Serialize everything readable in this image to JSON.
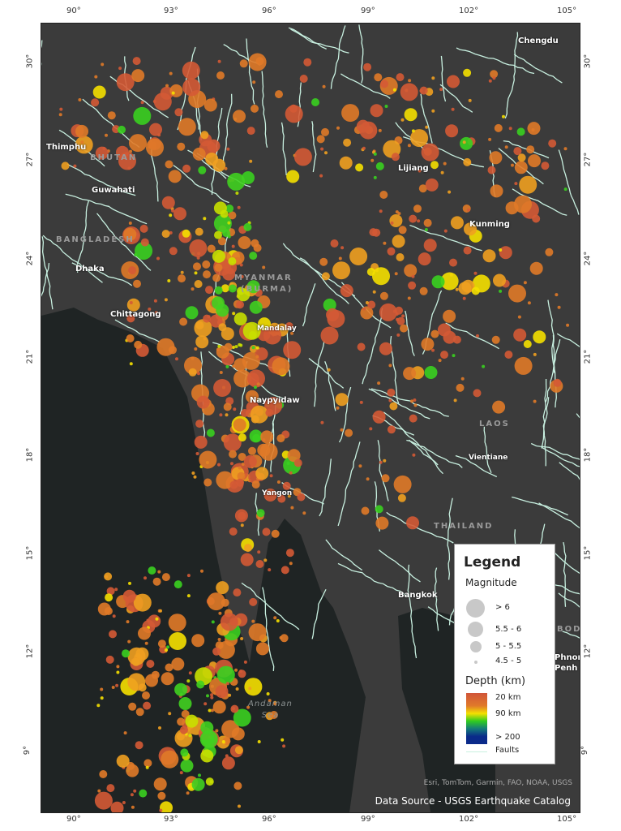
{
  "axes": {
    "lon_ticks": [
      "90°",
      "93°",
      "96°",
      "99°",
      "102°",
      "105°"
    ],
    "lat_ticks": [
      "30°",
      "27°",
      "24°",
      "21°",
      "18°",
      "15°",
      "12°",
      "9°"
    ]
  },
  "places": {
    "chengdu": "Chengdu",
    "thimphu": "Thimphu",
    "guwahati": "Guwahati",
    "dhaka": "Dhaka",
    "chittagong": "Chittagong",
    "mandalay": "Mandalay",
    "lijiang": "Lijiang",
    "kunming": "Kunming",
    "naypyidaw": "Naypyidaw",
    "vientiane": "Vientiane",
    "yangon": "Yangon",
    "bangkok": "Bangkok",
    "phnom_penh": "Phnom\nPenh"
  },
  "countries": {
    "bhutan": "BHUTAN",
    "bangladesh": "BANGLADESH",
    "myanmar": "MYANMAR",
    "burma": "(BURMA)",
    "laos": "LAOS",
    "thailand": "THAILAND",
    "cambodia": "BOD"
  },
  "seas": {
    "andaman": "Andaman\nSea"
  },
  "legend": {
    "title": "Legend",
    "magnitude_title": "Magnitude",
    "magnitude_classes": [
      "> 6",
      "5.5 - 6",
      "5 - 5.5",
      "4.5 - 5"
    ],
    "depth_title": "Depth (km)",
    "depth_labels": [
      "20 km",
      "90 km",
      "> 200"
    ],
    "faults_label": "Faults"
  },
  "colors": {
    "land": "#3b3b3b",
    "sea": "#1f2424",
    "faults": "#c8f0e0",
    "shallow": "#d0553a",
    "intermediate": "#f5e000",
    "mid_deep": "#2ecc20",
    "deep": "#0a2a8a"
  },
  "attribution": "Esri, TomTom, Garmin, FAO, NOAA, USGS",
  "data_source": "Data Source - USGS Earthquake Catalog"
}
